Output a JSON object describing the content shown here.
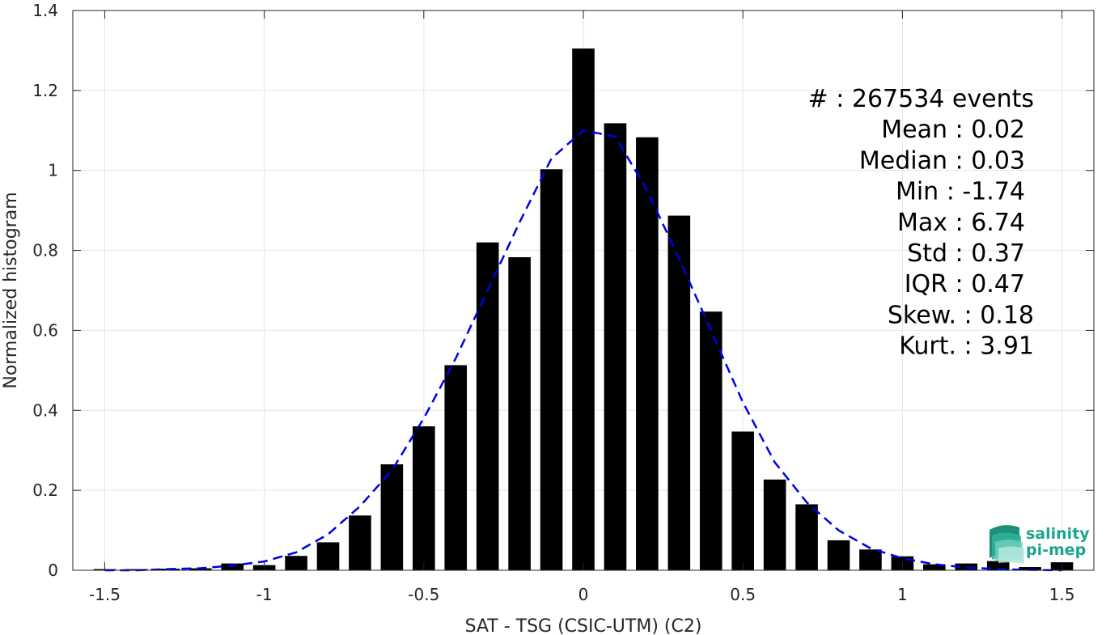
{
  "chart_data": {
    "type": "bar",
    "xlabel": "SAT - TSG (CSIC-UTM) (C2)",
    "ylabel": "Normalized histogram",
    "xlim": [
      -1.6,
      1.6
    ],
    "ylim": [
      0,
      1.4
    ],
    "grid": true,
    "xticks": [
      "-1.5",
      "-1",
      "-0.5",
      "0",
      "0.5",
      "1",
      "1.5"
    ],
    "xtick_values": [
      -1.5,
      -1,
      -0.5,
      0,
      0.5,
      1,
      1.5
    ],
    "yticks": [
      "0",
      "0.2",
      "0.4",
      "0.6",
      "0.8",
      "1",
      "1.2",
      "1.4"
    ],
    "ytick_values": [
      0,
      0.2,
      0.4,
      0.6,
      0.8,
      1.0,
      1.2,
      1.4
    ],
    "bar_width": 0.07,
    "bars": {
      "x": [
        -1.5,
        -1.4,
        -1.3,
        -1.2,
        -1.1,
        -1.0,
        -0.9,
        -0.8,
        -0.7,
        -0.6,
        -0.5,
        -0.4,
        -0.3,
        -0.2,
        -0.1,
        0.0,
        0.1,
        0.2,
        0.3,
        0.4,
        0.5,
        0.6,
        0.7,
        0.8,
        0.9,
        1.0,
        1.1,
        1.2,
        1.3,
        1.4,
        1.5
      ],
      "values": [
        0.003,
        0.003,
        0.004,
        0.005,
        0.017,
        0.013,
        0.036,
        0.07,
        0.137,
        0.265,
        0.36,
        0.513,
        0.82,
        0.783,
        1.003,
        1.305,
        1.118,
        1.083,
        0.887,
        0.647,
        0.347,
        0.227,
        0.165,
        0.075,
        0.052,
        0.035,
        0.015,
        0.017,
        0.023,
        0.008,
        0.02
      ]
    },
    "fit": {
      "style": "dashed",
      "color": "#0000e6",
      "x": [
        -1.5,
        -1.4,
        -1.3,
        -1.2,
        -1.1,
        -1.0,
        -0.9,
        -0.8,
        -0.7,
        -0.6,
        -0.5,
        -0.4,
        -0.3,
        -0.2,
        -0.1,
        0.0,
        0.1,
        0.2,
        0.3,
        0.4,
        0.5,
        0.6,
        0.7,
        0.8,
        0.9,
        1.0,
        1.1,
        1.2,
        1.3,
        1.4,
        1.5
      ],
      "y": [
        0.0,
        0.0,
        0.003,
        0.005,
        0.012,
        0.022,
        0.045,
        0.09,
        0.16,
        0.25,
        0.38,
        0.53,
        0.7,
        0.87,
        1.03,
        1.1,
        1.085,
        0.95,
        0.78,
        0.6,
        0.42,
        0.27,
        0.17,
        0.1,
        0.055,
        0.03,
        0.015,
        0.007,
        0.003,
        0.001,
        0.0
      ]
    },
    "bar_color": "#000000",
    "annotations": [
      "#  : 267534 events",
      "Mean : 0.02",
      "Median : 0.03",
      "Min : -1.74",
      "Max : 6.74",
      "Std : 0.37",
      "IQR : 0.47",
      "Skew. : 0.18",
      "Kurt. : 3.91"
    ]
  },
  "logo": {
    "line1": "salinity",
    "line2": "pi-mep",
    "color": "#1aa58c"
  }
}
